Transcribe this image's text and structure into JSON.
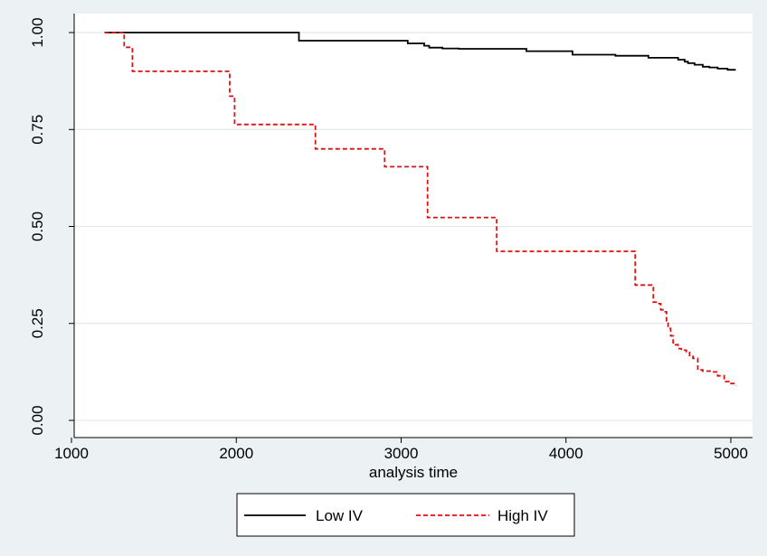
{
  "chart_data": {
    "type": "line",
    "line_style": "step",
    "xlabel": "analysis time",
    "ylabel": "",
    "xlim": [
      1000,
      5050
    ],
    "ylim": [
      0,
      1
    ],
    "x_ticks": [
      1000,
      2000,
      3000,
      4000,
      5000
    ],
    "y_ticks": [
      0,
      0.25,
      0.5,
      0.75,
      1
    ],
    "x_tick_labels": [
      "1000",
      "2000",
      "3000",
      "4000",
      "5000"
    ],
    "y_tick_labels": [
      "0.00",
      "0.25",
      "0.50",
      "0.75",
      "1.00"
    ],
    "grid": true,
    "legend_position": "bottom",
    "colors": {
      "background": "#ecf1f4",
      "plot_area": "#ffffff",
      "gridline": "#e3eaee",
      "low_iv": "#000000",
      "high_iv": "#dd1111"
    },
    "series": [
      {
        "name": "Low IV",
        "color": "#000000",
        "dash": "solid",
        "x": [
          1200,
          2350,
          2380,
          2960,
          3040,
          3140,
          3170,
          3250,
          3350,
          3700,
          3760,
          3960,
          4040,
          4230,
          4300,
          4420,
          4500,
          4630,
          4680,
          4720,
          4740,
          4780,
          4830,
          4870,
          4920,
          4980,
          5030
        ],
        "y": [
          1.0,
          1.0,
          0.979,
          0.979,
          0.972,
          0.966,
          0.961,
          0.959,
          0.958,
          0.958,
          0.952,
          0.952,
          0.943,
          0.943,
          0.94,
          0.94,
          0.935,
          0.935,
          0.93,
          0.925,
          0.921,
          0.917,
          0.912,
          0.91,
          0.907,
          0.904,
          0.904
        ]
      },
      {
        "name": "High IV",
        "color": "#dd1111",
        "dash": "dashed",
        "x": [
          1200,
          1320,
          1370,
          1960,
          1990,
          2480,
          2900,
          3160,
          3580,
          4420,
          4530,
          4555,
          4575,
          4595,
          4610,
          4620,
          4635,
          4650,
          4665,
          4680,
          4700,
          4730,
          4750,
          4770,
          4800,
          4830,
          4880,
          4920,
          4960,
          4990,
          5030
        ],
        "y": [
          1.0,
          0.962,
          0.9,
          0.836,
          0.763,
          0.7,
          0.654,
          0.523,
          0.436,
          0.349,
          0.305,
          0.301,
          0.285,
          0.28,
          0.255,
          0.237,
          0.218,
          0.2,
          0.195,
          0.185,
          0.181,
          0.175,
          0.165,
          0.16,
          0.13,
          0.127,
          0.125,
          0.115,
          0.1,
          0.095,
          0.09
        ]
      }
    ]
  }
}
